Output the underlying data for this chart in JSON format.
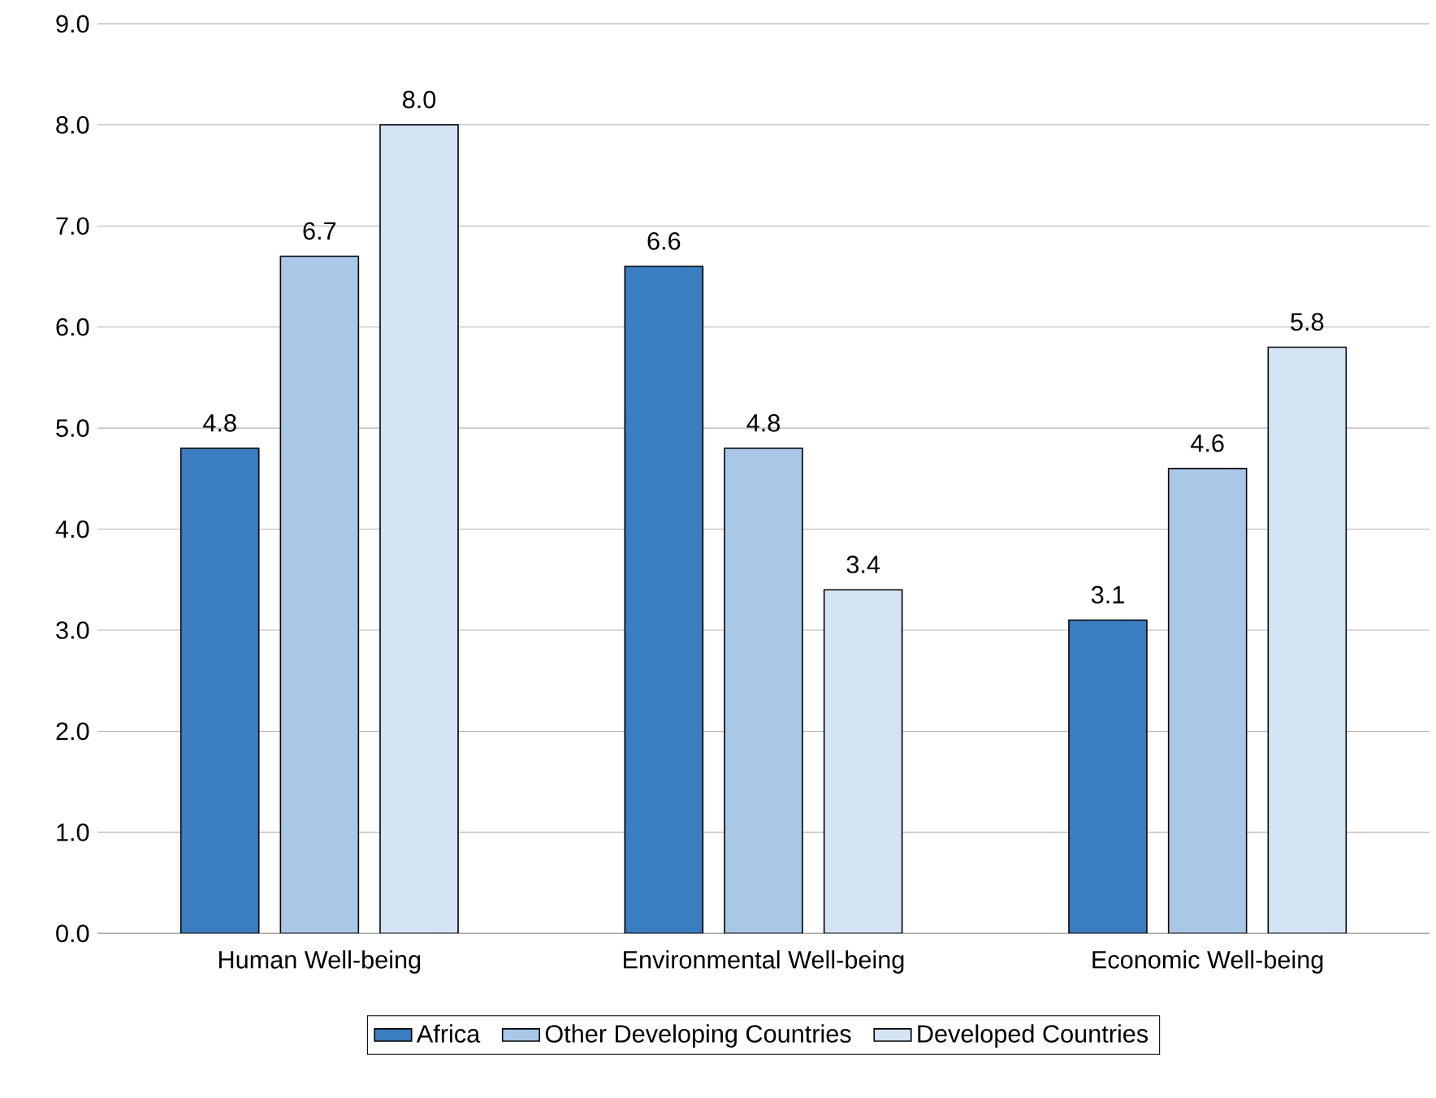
{
  "chart_data": {
    "type": "bar",
    "categories": [
      "Human Well-being",
      "Environmental Well-being",
      "Economic Well-being"
    ],
    "series": [
      {
        "name": "Africa",
        "color": "#3a7dc0",
        "values": [
          4.8,
          6.6,
          3.1
        ],
        "value_labels": [
          "4.8",
          "6.6",
          "3.1"
        ]
      },
      {
        "name": "Other Developing Countries",
        "color": "#a9c8e8",
        "values": [
          6.7,
          4.8,
          4.6
        ],
        "value_labels": [
          "6.7",
          "4.8",
          "4.6"
        ]
      },
      {
        "name": "Developed Countries",
        "color": "#d4e4f4",
        "values": [
          8.0,
          3.4,
          5.8
        ],
        "value_labels": [
          "8.0",
          "3.4",
          "5.8"
        ]
      }
    ],
    "ylim": [
      0,
      9
    ],
    "yticks": [
      {
        "value": 0,
        "label": "0.0"
      },
      {
        "value": 1,
        "label": "1.0"
      },
      {
        "value": 2,
        "label": "2.0"
      },
      {
        "value": 3,
        "label": "3.0"
      },
      {
        "value": 4,
        "label": "4.0"
      },
      {
        "value": 5,
        "label": "5.0"
      },
      {
        "value": 6,
        "label": "6.0"
      },
      {
        "value": 7,
        "label": "7.0"
      },
      {
        "value": 8,
        "label": "8.0"
      },
      {
        "value": 9,
        "label": "9.0"
      }
    ],
    "grid": "y",
    "legend": "bottom"
  }
}
